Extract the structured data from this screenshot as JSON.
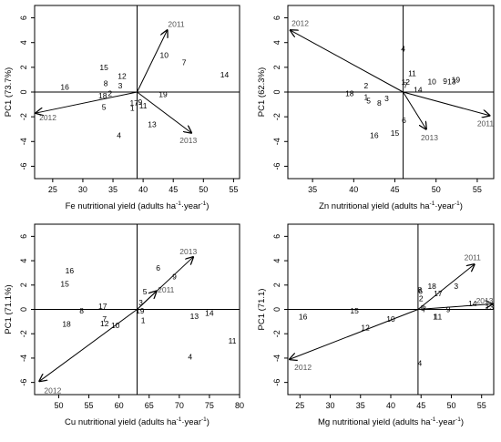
{
  "chart_data": [
    {
      "type": "scatter",
      "title": "",
      "xlabel": "Fe nutritional yield (adults ha",
      "xlabel_sup1": "-1",
      "xlabel_mid": "·year",
      "xlabel_sup2": "-1",
      "xlabel_end": ")",
      "ylabel": "PC1 (73.7%)",
      "xlim": [
        22,
        56
      ],
      "ylim": [
        -7,
        7
      ],
      "xticks": [
        25,
        30,
        35,
        40,
        45,
        50,
        55
      ],
      "yticks": [
        -6,
        -4,
        -2,
        0,
        2,
        4,
        6
      ],
      "ref_x": 39,
      "ref_y": 0,
      "grid": false,
      "points": [
        {
          "label": "1",
          "x": 38.2,
          "y": -1.3
        },
        {
          "label": "2",
          "x": 34.5,
          "y": -0.1
        },
        {
          "label": "3",
          "x": 36.2,
          "y": 0.5
        },
        {
          "label": "4",
          "x": 36.0,
          "y": -3.5
        },
        {
          "label": "5",
          "x": 33.5,
          "y": -1.2
        },
        {
          "label": "7",
          "x": 46.8,
          "y": 2.4
        },
        {
          "label": "8",
          "x": 33.8,
          "y": 0.7
        },
        {
          "label": "9",
          "x": 39.5,
          "y": -0.8
        },
        {
          "label": "10",
          "x": 43.5,
          "y": 3.0
        },
        {
          "label": "11",
          "x": 40.0,
          "y": -1.1
        },
        {
          "label": "12",
          "x": 36.5,
          "y": 1.3
        },
        {
          "label": "13",
          "x": 41.5,
          "y": -2.6
        },
        {
          "label": "14",
          "x": 53.5,
          "y": 1.4
        },
        {
          "label": "15",
          "x": 33.5,
          "y": 2.0
        },
        {
          "label": "16",
          "x": 27.0,
          "y": 0.4
        },
        {
          "label": "17",
          "x": 38.5,
          "y": -0.9
        },
        {
          "label": "18",
          "x": 33.3,
          "y": -0.3
        },
        {
          "label": "19",
          "x": 43.3,
          "y": -0.2
        }
      ],
      "vectors": [
        {
          "label": "2011",
          "x": 44.0,
          "y": 5.0,
          "lx": 45.5,
          "ly": 5.5
        },
        {
          "label": "2012",
          "x": 22.2,
          "y": -1.7,
          "lx": 24.2,
          "ly": -2.05
        },
        {
          "label": "2013",
          "x": 48.0,
          "y": -3.3,
          "lx": 47.5,
          "ly": -3.9
        }
      ]
    },
    {
      "type": "scatter",
      "title": "",
      "xlabel": "Zn nutritional yield (adults ha",
      "xlabel_sup1": "-1",
      "xlabel_mid": "·year",
      "xlabel_sup2": "-1",
      "xlabel_end": ")",
      "ylabel": "PC1 (62.3%)",
      "xlim": [
        32,
        57
      ],
      "ylim": [
        -7,
        7
      ],
      "xticks": [
        35,
        40,
        45,
        50,
        55
      ],
      "yticks": [
        -6,
        -4,
        -2,
        0,
        2,
        4,
        6
      ],
      "ref_x": 46,
      "ref_y": 0,
      "grid": false,
      "points": [
        {
          "label": "1",
          "x": 41.5,
          "y": -0.4
        },
        {
          "label": "2",
          "x": 41.5,
          "y": 0.5
        },
        {
          "label": "3",
          "x": 44.0,
          "y": -0.5
        },
        {
          "label": "4",
          "x": 46.0,
          "y": 3.5
        },
        {
          "label": "5",
          "x": 41.8,
          "y": -0.7
        },
        {
          "label": "6",
          "x": 46.1,
          "y": -2.3
        },
        {
          "label": "7",
          "x": 46.3,
          "y": 0.55
        },
        {
          "label": "8",
          "x": 43.1,
          "y": -0.9
        },
        {
          "label": "9",
          "x": 51.1,
          "y": 0.9
        },
        {
          "label": "10",
          "x": 49.5,
          "y": 0.85
        },
        {
          "label": "11",
          "x": 47.1,
          "y": 1.5
        },
        {
          "label": "12",
          "x": 46.3,
          "y": 0.8
        },
        {
          "label": "13",
          "x": 51.9,
          "y": 0.85
        },
        {
          "label": "14",
          "x": 47.8,
          "y": 0.2
        },
        {
          "label": "15",
          "x": 45.0,
          "y": -3.3
        },
        {
          "label": "16",
          "x": 42.5,
          "y": -3.5
        },
        {
          "label": "18",
          "x": 39.5,
          "y": -0.1
        },
        {
          "label": "19",
          "x": 52.4,
          "y": 1.0
        }
      ],
      "vectors": [
        {
          "label": "2011",
          "x": 56.5,
          "y": -1.9,
          "lx": 56.0,
          "ly": -2.55
        },
        {
          "label": "2012",
          "x": 32.3,
          "y": 5.0,
          "lx": 33.5,
          "ly": 5.55
        },
        {
          "label": "2013",
          "x": 48.8,
          "y": -3.0,
          "lx": 49.2,
          "ly": -3.7
        }
      ]
    },
    {
      "type": "scatter",
      "title": "",
      "xlabel": "Cu nutritional yield (adults ha",
      "xlabel_sup1": "-1",
      "xlabel_mid": "·year",
      "xlabel_sup2": "-1",
      "xlabel_end": ")",
      "ylabel": "PC1 (71.1%)",
      "xlim": [
        46,
        80
      ],
      "ylim": [
        -7,
        7
      ],
      "xticks": [
        50,
        55,
        60,
        65,
        70,
        75,
        80
      ],
      "yticks": [
        -6,
        -4,
        -2,
        0,
        2,
        4,
        6
      ],
      "ref_x": 63,
      "ref_y": 0,
      "grid": false,
      "points": [
        {
          "label": "1",
          "x": 64.0,
          "y": -0.9
        },
        {
          "label": "3",
          "x": 63.6,
          "y": 0.55
        },
        {
          "label": "4",
          "x": 71.8,
          "y": -3.9
        },
        {
          "label": "5",
          "x": 64.3,
          "y": 1.45
        },
        {
          "label": "6",
          "x": 66.5,
          "y": 3.4
        },
        {
          "label": "7",
          "x": 57.6,
          "y": -0.8
        },
        {
          "label": "8",
          "x": 53.8,
          "y": -0.1
        },
        {
          "label": "9",
          "x": 69.2,
          "y": 2.7
        },
        {
          "label": "10",
          "x": 59.4,
          "y": -1.3
        },
        {
          "label": "11",
          "x": 78.8,
          "y": -2.6
        },
        {
          "label": "12",
          "x": 57.6,
          "y": -1.15
        },
        {
          "label": "13",
          "x": 72.5,
          "y": -0.55
        },
        {
          "label": "14",
          "x": 75.0,
          "y": -0.3
        },
        {
          "label": "15",
          "x": 51.0,
          "y": 2.1
        },
        {
          "label": "16",
          "x": 51.8,
          "y": 3.2
        },
        {
          "label": "17",
          "x": 57.3,
          "y": 0.25
        },
        {
          "label": "18",
          "x": 51.3,
          "y": -1.2
        },
        {
          "label": "19",
          "x": 63.5,
          "y": -0.1
        }
      ],
      "vectors": [
        {
          "label": "2011",
          "x": 66.2,
          "y": 1.5,
          "lx": 67.8,
          "ly": 1.6
        },
        {
          "label": "2012",
          "x": 46.8,
          "y": -5.9,
          "lx": 49.0,
          "ly": -6.65
        },
        {
          "label": "2013",
          "x": 72.3,
          "y": 4.3,
          "lx": 71.5,
          "ly": 4.75
        }
      ]
    },
    {
      "type": "scatter",
      "title": "",
      "xlabel": "Mg nutritional yield (adults ha",
      "xlabel_sup1": "-1",
      "xlabel_mid": "·year",
      "xlabel_sup2": "-1",
      "xlabel_end": ")",
      "ylabel": "PC1 (71.1)",
      "xlim": [
        23,
        57
      ],
      "ylim": [
        -7,
        7
      ],
      "xticks": [
        25,
        30,
        35,
        40,
        45,
        50,
        55
      ],
      "yticks": [
        -6,
        -4,
        -2,
        0,
        2,
        4,
        6
      ],
      "ref_x": 44.5,
      "ref_y": 0,
      "grid": false,
      "points": [
        {
          "label": "1",
          "x": 47.3,
          "y": -0.6
        },
        {
          "label": "2",
          "x": 45.0,
          "y": 0.9
        },
        {
          "label": "3",
          "x": 50.8,
          "y": 1.9
        },
        {
          "label": "4",
          "x": 44.8,
          "y": -4.4
        },
        {
          "label": "5",
          "x": 45.3,
          "y": 0.1
        },
        {
          "label": "6",
          "x": 44.9,
          "y": 1.5
        },
        {
          "label": "7",
          "x": 45.5,
          "y": 0.0
        },
        {
          "label": "8",
          "x": 44.8,
          "y": 1.6
        },
        {
          "label": "9",
          "x": 49.5,
          "y": 0.0
        },
        {
          "label": "10",
          "x": 40.0,
          "y": -0.8
        },
        {
          "label": "11",
          "x": 47.8,
          "y": -0.6
        },
        {
          "label": "12",
          "x": 35.8,
          "y": -1.5
        },
        {
          "label": "13",
          "x": 56.3,
          "y": 0.2
        },
        {
          "label": "14",
          "x": 53.5,
          "y": 0.5
        },
        {
          "label": "15",
          "x": 34.0,
          "y": -0.1
        },
        {
          "label": "16",
          "x": 25.5,
          "y": -0.6
        },
        {
          "label": "17",
          "x": 47.8,
          "y": 1.3
        },
        {
          "label": "18",
          "x": 46.8,
          "y": 1.9
        }
      ],
      "vectors": [
        {
          "label": "2011",
          "x": 53.8,
          "y": 3.7,
          "lx": 53.5,
          "ly": 4.25
        },
        {
          "label": "2012",
          "x": 23.3,
          "y": -4.1,
          "lx": 25.5,
          "ly": -4.75
        },
        {
          "label": "2013",
          "x": 56.8,
          "y": 0.45,
          "lx": 55.5,
          "ly": 0.7
        }
      ]
    }
  ]
}
